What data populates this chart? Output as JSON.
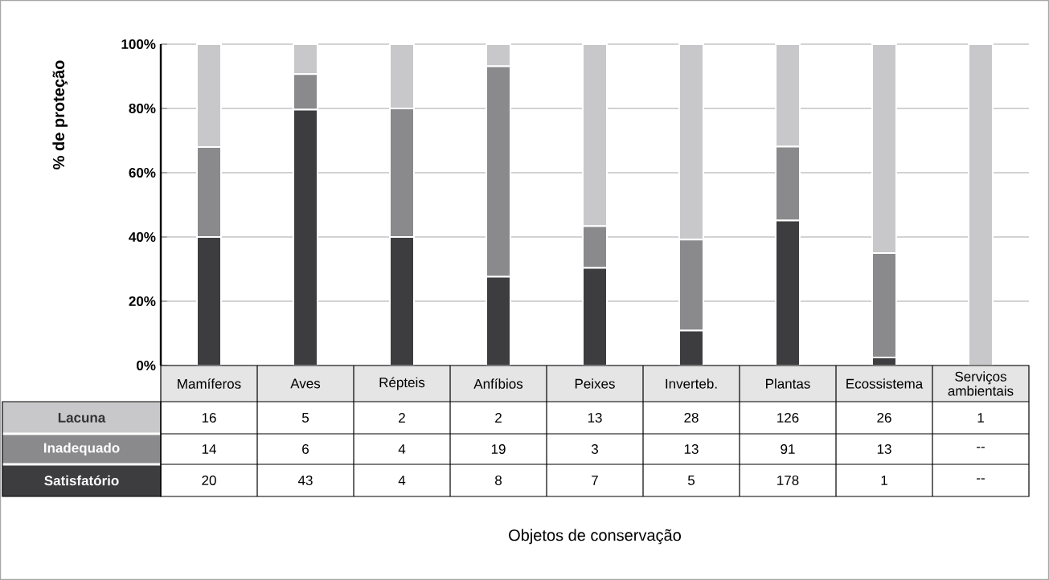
{
  "chart_data": {
    "type": "bar",
    "stacked": true,
    "ylabel": "% de proteção",
    "categories": [
      "Mamíferos",
      "Aves",
      "Répteis",
      "Anfíbios",
      "Peixes",
      "Inverteb.",
      "Plantas",
      "Ecossistema",
      "Serviços ambientais"
    ],
    "series": [
      {
        "name": "Satisfatório",
        "color": "#3d3d3f",
        "values": [
          40,
          79.6,
          40,
          27.6,
          30.4,
          10.9,
          45.1,
          2.5,
          0
        ]
      },
      {
        "name": "Inadequado",
        "color": "#8a8a8c",
        "values": [
          28,
          11.1,
          40,
          65.5,
          13.0,
          28.3,
          23.0,
          32.5,
          0
        ]
      },
      {
        "name": "Lacuna",
        "color": "#c8c8ca",
        "values": [
          32,
          9.3,
          20,
          6.9,
          56.6,
          60.8,
          31.9,
          65,
          100
        ]
      }
    ],
    "ylim": [
      0,
      100
    ],
    "yticks": [
      {
        "value": 0,
        "label": "0%"
      },
      {
        "value": 20,
        "label": "20%"
      },
      {
        "value": 40,
        "label": "40%"
      },
      {
        "value": 60,
        "label": "60%"
      },
      {
        "value": 80,
        "label": "80%"
      },
      {
        "value": 100,
        "label": "100%"
      }
    ],
    "grid": "y",
    "annotations": [
      "Objetos de conservação",
      "16",
      "5",
      "2",
      "2",
      "13",
      "28",
      "126",
      "26",
      "1",
      "14",
      "6",
      "4",
      "19",
      "3",
      "13",
      "91",
      "13",
      "--",
      "20",
      "43",
      "4",
      "8",
      "7",
      "5",
      "178",
      "1",
      "--"
    ]
  }
}
